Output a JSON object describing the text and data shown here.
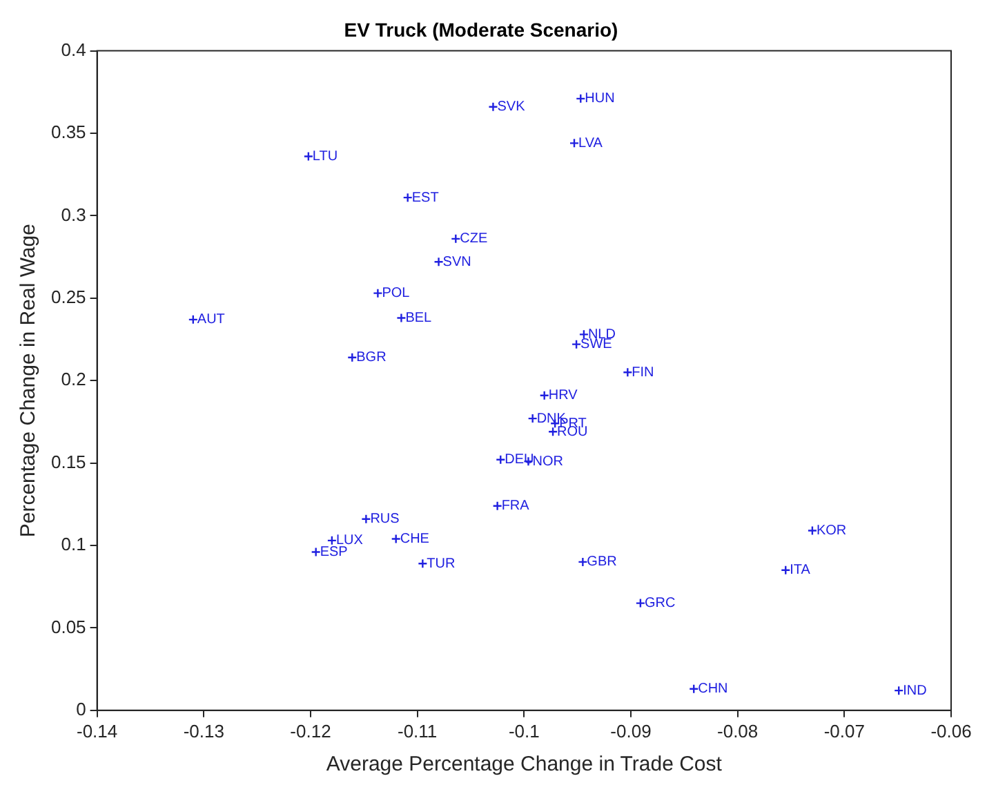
{
  "chart_data": {
    "type": "scatter",
    "title": "EV Truck (Moderate Scenario)",
    "xlabel": "Average Percentage Change in Trade Cost",
    "ylabel": "Percentage Change in Real Wage",
    "x": [
      -0.1029,
      -0.1202,
      -0.1109,
      -0.1064,
      -0.108,
      -0.1137,
      -0.1115,
      -0.131,
      -0.1161,
      -0.0947,
      -0.0953,
      -0.0944,
      -0.0951,
      -0.0903,
      -0.0981,
      -0.0992,
      -0.0971,
      -0.0973,
      -0.1022,
      -0.0996,
      -0.1025,
      -0.1148,
      -0.118,
      -0.112,
      -0.1195,
      -0.1095,
      -0.0945,
      -0.073,
      -0.0755,
      -0.0891,
      -0.0841,
      -0.0649
    ],
    "series": [
      {
        "color": "#2020e0",
        "values": [
          0.366,
          0.336,
          0.311,
          0.286,
          0.272,
          0.253,
          0.238,
          0.237,
          0.214,
          0.371,
          0.344,
          0.228,
          0.222,
          0.205,
          0.191,
          0.177,
          0.174,
          0.169,
          0.152,
          0.151,
          0.124,
          0.116,
          0.103,
          0.104,
          0.096,
          0.089,
          0.09,
          0.109,
          0.085,
          0.065,
          0.013,
          0.012
        ]
      }
    ],
    "annotations": [
      {
        "text": "SVK",
        "x": -0.1029,
        "y": 0.366
      },
      {
        "text": "LTU",
        "x": -0.1202,
        "y": 0.336
      },
      {
        "text": "EST",
        "x": -0.1109,
        "y": 0.311
      },
      {
        "text": "CZE",
        "x": -0.1064,
        "y": 0.286
      },
      {
        "text": "SVN",
        "x": -0.108,
        "y": 0.272
      },
      {
        "text": "POL",
        "x": -0.1137,
        "y": 0.253
      },
      {
        "text": "BEL",
        "x": -0.1115,
        "y": 0.238
      },
      {
        "text": "AUT",
        "x": -0.131,
        "y": 0.237
      },
      {
        "text": "BGR",
        "x": -0.1161,
        "y": 0.214
      },
      {
        "text": "HUN",
        "x": -0.0947,
        "y": 0.371
      },
      {
        "text": "LVA",
        "x": -0.0953,
        "y": 0.344
      },
      {
        "text": "NLD",
        "x": -0.0944,
        "y": 0.228
      },
      {
        "text": "SWE",
        "x": -0.0951,
        "y": 0.222
      },
      {
        "text": "FIN",
        "x": -0.0903,
        "y": 0.205
      },
      {
        "text": "HRV",
        "x": -0.0981,
        "y": 0.191
      },
      {
        "text": "DNK",
        "x": -0.0992,
        "y": 0.177
      },
      {
        "text": "PRT",
        "x": -0.0971,
        "y": 0.174
      },
      {
        "text": "ROU",
        "x": -0.0973,
        "y": 0.169
      },
      {
        "text": "DEU",
        "x": -0.1022,
        "y": 0.152
      },
      {
        "text": "NOR",
        "x": -0.0996,
        "y": 0.151
      },
      {
        "text": "FRA",
        "x": -0.1025,
        "y": 0.124
      },
      {
        "text": "RUS",
        "x": -0.1148,
        "y": 0.116
      },
      {
        "text": "LUX",
        "x": -0.118,
        "y": 0.103
      },
      {
        "text": "CHE",
        "x": -0.112,
        "y": 0.104
      },
      {
        "text": "ESP",
        "x": -0.1195,
        "y": 0.096
      },
      {
        "text": "TUR",
        "x": -0.1095,
        "y": 0.089
      },
      {
        "text": "GBR",
        "x": -0.0945,
        "y": 0.09
      },
      {
        "text": "KOR",
        "x": -0.073,
        "y": 0.109
      },
      {
        "text": "ITA",
        "x": -0.0755,
        "y": 0.085
      },
      {
        "text": "GRC",
        "x": -0.0891,
        "y": 0.065
      },
      {
        "text": "CHN",
        "x": -0.0841,
        "y": 0.013
      },
      {
        "text": "IND",
        "x": -0.0649,
        "y": 0.012
      }
    ],
    "xlim": [
      -0.14,
      -0.06
    ],
    "xticks": [
      -0.14,
      -0.13,
      -0.12,
      -0.11,
      -0.1,
      -0.09,
      -0.08,
      -0.07,
      -0.06
    ],
    "ylim": [
      0,
      0.4
    ],
    "yticks": [
      0,
      0.05,
      0.1,
      0.15,
      0.2,
      0.25,
      0.3,
      0.35,
      0.4
    ],
    "grid": false,
    "legend": false,
    "marker": "cross"
  }
}
